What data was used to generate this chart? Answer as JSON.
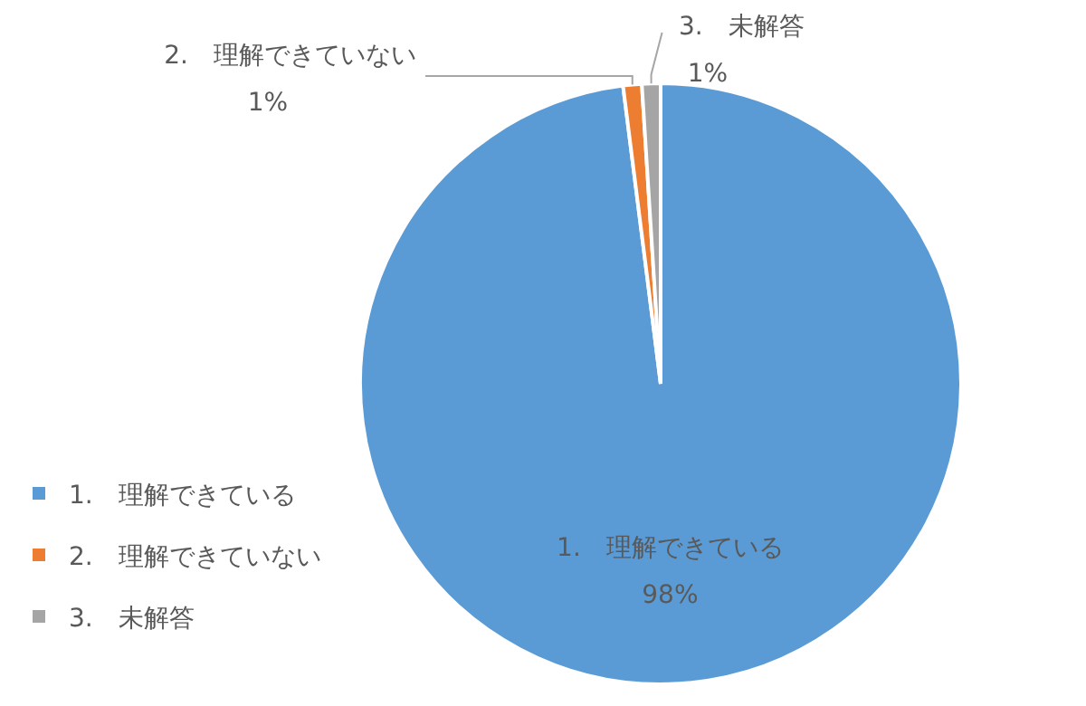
{
  "chart_data": {
    "type": "pie",
    "categories": [
      "1.　理解できている",
      "2.　理解できていない",
      "3.　未解答"
    ],
    "values": [
      98,
      1,
      1
    ],
    "value_labels": [
      "98%",
      "1%",
      "1%"
    ],
    "colors": [
      "#5b9bd5",
      "#ed7d31",
      "#a5a5a5"
    ],
    "legend": "bottom left"
  }
}
